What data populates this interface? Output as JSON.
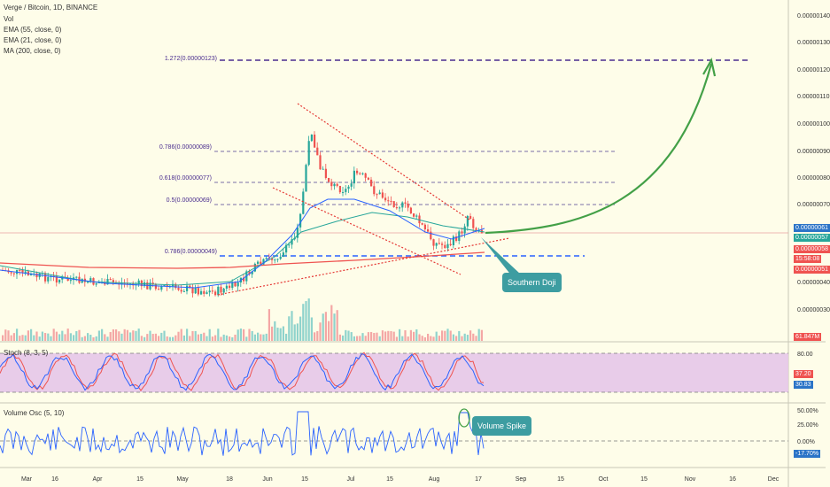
{
  "header": {
    "symbol_line": "Verge / Bitcoin, 1D, BINANCE",
    "vol_label": "Vol",
    "ema55_label": "EMA (55, close, 0)",
    "ema21_label": "EMA (21, close, 0)",
    "ma200_label": "MA (200, close, 0)"
  },
  "fib_levels": [
    {
      "label": "1.272(0.00000123)"
    },
    {
      "label": "0.786(0.00000089)"
    },
    {
      "label": "0.618(0.00000077)"
    },
    {
      "label": "0.5(0.00000069)"
    },
    {
      "label": "0.786(0.00000049)"
    }
  ],
  "price_axis": {
    "ticks": [
      "0.00000140",
      "0.00000130",
      "0.00000120",
      "0.00000110",
      "0.00000100",
      "0.00000090",
      "0.00000080",
      "0.00000070",
      "0.00000040",
      "0.00000030"
    ],
    "badges": {
      "last": "0.00000061",
      "ema": "0.00000057",
      "ma_price": "0.00000058",
      "countdown": "15:58:08",
      "lower": "0.00000051",
      "volume": "61.847M"
    },
    "colors": {
      "last": "#2b74c7",
      "ema": "#26a69a",
      "ma_price": "#ef5350",
      "countdown": "#ef5350",
      "lower": "#ef5350",
      "volume": "#ef5350"
    }
  },
  "stoch": {
    "label": "Stoch (8, 3, 5)",
    "ticks": [
      "80.00"
    ],
    "badges": {
      "k": "37.20",
      "d": "30.83"
    },
    "band_color": "#e5c6e9"
  },
  "volume_osc": {
    "label": "Volume Osc (5, 10)",
    "ticks": [
      "50.00%",
      "25.00%",
      "0.00%"
    ],
    "badge": "-17.70%"
  },
  "time_axis": {
    "labels": [
      "Mar",
      "16",
      "Apr",
      "15",
      "May",
      "18",
      "Jun",
      "15",
      "Jul",
      "15",
      "Aug",
      "17",
      "Sep",
      "15",
      "Oct",
      "15",
      "Nov",
      "16",
      "Dec"
    ]
  },
  "annotations": {
    "southern_doji": "Southern Doji",
    "volume_spike": "Volume Spike"
  },
  "colors": {
    "background": "#fefde9",
    "up": "#26a69a",
    "down": "#ef5350",
    "ema55": "#2962ff",
    "ma200": "#ef5350",
    "fib": "#4a2d8f",
    "projection": "#43a047",
    "callout": "#3d9da1"
  }
}
